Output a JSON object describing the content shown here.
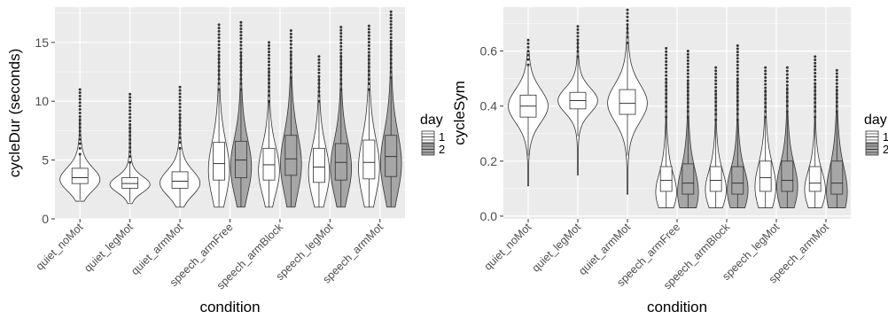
{
  "chart_data": [
    {
      "type": "violin",
      "xlabel": "condition",
      "ylabel": "cycleDur (seconds)",
      "ylim": [
        0,
        18
      ],
      "yticks": [
        0,
        5,
        10,
        15
      ],
      "categories": [
        "quiet_noMot",
        "quiet_legMot",
        "quiet_armMot",
        "speech_armFree",
        "speech_armBlock",
        "speech_legMot",
        "speech_armMot"
      ],
      "legend": {
        "title": "day",
        "entries": [
          "1",
          "2"
        ],
        "placement": "right"
      },
      "colors": {
        "day1": "#ffffff",
        "day2": "#a6a6a6",
        "panel": "#ebebeb",
        "grid": "#ffffff"
      },
      "series": [
        {
          "category": "quiet_noMot",
          "day": "1",
          "min": 1.5,
          "q1": 3.0,
          "median": 3.5,
          "q3": 4.3,
          "whisker_low": 1.6,
          "whisker_high": 5.5,
          "max": 11.0,
          "mode": 3.3
        },
        {
          "category": "quiet_legMot",
          "day": "1",
          "min": 1.3,
          "q1": 2.6,
          "median": 3.0,
          "q3": 3.5,
          "whisker_low": 1.4,
          "whisker_high": 4.8,
          "max": 10.6,
          "mode": 2.9
        },
        {
          "category": "quiet_armMot",
          "day": "1",
          "min": 1.0,
          "q1": 2.6,
          "median": 3.2,
          "q3": 4.0,
          "whisker_low": 1.0,
          "whisker_high": 6.0,
          "max": 11.2,
          "mode": 3.0
        },
        {
          "category": "speech_armFree",
          "day": "1",
          "min": 1.0,
          "q1": 3.3,
          "median": 4.7,
          "q3": 6.5,
          "whisker_low": 1.0,
          "whisker_high": 11.0,
          "max": 16.5,
          "mode": 4.0
        },
        {
          "category": "speech_armFree",
          "day": "2",
          "min": 1.0,
          "q1": 3.5,
          "median": 5.0,
          "q3": 6.6,
          "whisker_low": 1.0,
          "whisker_high": 11.0,
          "max": 16.7,
          "mode": 4.3
        },
        {
          "category": "speech_armBlock",
          "day": "1",
          "min": 1.0,
          "q1": 3.3,
          "median": 4.6,
          "q3": 6.0,
          "whisker_low": 1.0,
          "whisker_high": 10.0,
          "max": 15.0,
          "mode": 4.0
        },
        {
          "category": "speech_armBlock",
          "day": "2",
          "min": 1.0,
          "q1": 3.7,
          "median": 5.1,
          "q3": 7.1,
          "whisker_low": 1.0,
          "whisker_high": 12.0,
          "max": 16.0,
          "mode": 4.5
        },
        {
          "category": "speech_legMot",
          "day": "1",
          "min": 1.0,
          "q1": 3.1,
          "median": 4.4,
          "q3": 6.0,
          "whisker_low": 1.0,
          "whisker_high": 10.0,
          "max": 13.8,
          "mode": 3.8
        },
        {
          "category": "speech_legMot",
          "day": "2",
          "min": 1.0,
          "q1": 3.3,
          "median": 4.8,
          "q3": 6.4,
          "whisker_low": 1.0,
          "whisker_high": 11.0,
          "max": 16.3,
          "mode": 4.2
        },
        {
          "category": "speech_armMot",
          "day": "1",
          "min": 1.0,
          "q1": 3.4,
          "median": 4.8,
          "q3": 6.7,
          "whisker_low": 1.0,
          "whisker_high": 11.0,
          "max": 16.4,
          "mode": 4.2
        },
        {
          "category": "speech_armMot",
          "day": "2",
          "min": 1.0,
          "q1": 3.6,
          "median": 5.3,
          "q3": 7.1,
          "whisker_low": 1.0,
          "whisker_high": 12.0,
          "max": 17.6,
          "mode": 4.6
        }
      ]
    },
    {
      "type": "violin",
      "xlabel": "condition",
      "ylabel": "cycleSym",
      "ylim": [
        -0.01,
        0.76
      ],
      "yticks": [
        0.0,
        0.2,
        0.4,
        0.6
      ],
      "categories": [
        "quiet_noMot",
        "quiet_legMot",
        "quiet_armMot",
        "speech_armFree",
        "speech_armBlock",
        "speech_legMot",
        "speech_armMot"
      ],
      "legend": {
        "title": "day",
        "entries": [
          "1",
          "2"
        ],
        "placement": "right"
      },
      "colors": {
        "day1": "#ffffff",
        "day2": "#a6a6a6",
        "panel": "#ebebeb",
        "grid": "#ffffff"
      },
      "series": [
        {
          "category": "quiet_noMot",
          "day": "1",
          "min": 0.11,
          "q1": 0.36,
          "median": 0.4,
          "q3": 0.44,
          "whisker_low": 0.22,
          "whisker_high": 0.55,
          "max": 0.64,
          "mode": 0.4
        },
        {
          "category": "quiet_legMot",
          "day": "1",
          "min": 0.15,
          "q1": 0.39,
          "median": 0.42,
          "q3": 0.45,
          "whisker_low": 0.29,
          "whisker_high": 0.58,
          "max": 0.69,
          "mode": 0.42
        },
        {
          "category": "quiet_armMot",
          "day": "1",
          "min": 0.08,
          "q1": 0.37,
          "median": 0.41,
          "q3": 0.46,
          "whisker_low": 0.22,
          "whisker_high": 0.63,
          "max": 0.75,
          "mode": 0.41
        },
        {
          "category": "speech_armFree",
          "day": "1",
          "min": 0.03,
          "q1": 0.09,
          "median": 0.13,
          "q3": 0.18,
          "whisker_low": 0.03,
          "whisker_high": 0.36,
          "max": 0.61,
          "mode": 0.08
        },
        {
          "category": "speech_armFree",
          "day": "2",
          "min": 0.03,
          "q1": 0.08,
          "median": 0.12,
          "q3": 0.19,
          "whisker_low": 0.03,
          "whisker_high": 0.36,
          "max": 0.6,
          "mode": 0.08
        },
        {
          "category": "speech_armBlock",
          "day": "1",
          "min": 0.03,
          "q1": 0.09,
          "median": 0.13,
          "q3": 0.18,
          "whisker_low": 0.03,
          "whisker_high": 0.35,
          "max": 0.54,
          "mode": 0.09
        },
        {
          "category": "speech_armBlock",
          "day": "2",
          "min": 0.03,
          "q1": 0.08,
          "median": 0.12,
          "q3": 0.18,
          "whisker_low": 0.03,
          "whisker_high": 0.35,
          "max": 0.62,
          "mode": 0.09
        },
        {
          "category": "speech_legMot",
          "day": "1",
          "min": 0.03,
          "q1": 0.09,
          "median": 0.14,
          "q3": 0.2,
          "whisker_low": 0.03,
          "whisker_high": 0.36,
          "max": 0.54,
          "mode": 0.1
        },
        {
          "category": "speech_legMot",
          "day": "2",
          "min": 0.03,
          "q1": 0.09,
          "median": 0.13,
          "q3": 0.2,
          "whisker_low": 0.03,
          "whisker_high": 0.38,
          "max": 0.54,
          "mode": 0.1
        },
        {
          "category": "speech_armMot",
          "day": "1",
          "min": 0.03,
          "q1": 0.09,
          "median": 0.12,
          "q3": 0.18,
          "whisker_low": 0.03,
          "whisker_high": 0.36,
          "max": 0.58,
          "mode": 0.09
        },
        {
          "category": "speech_armMot",
          "day": "2",
          "min": 0.03,
          "q1": 0.08,
          "median": 0.12,
          "q3": 0.2,
          "whisker_low": 0.03,
          "whisker_high": 0.38,
          "max": 0.53,
          "mode": 0.08
        }
      ]
    }
  ]
}
